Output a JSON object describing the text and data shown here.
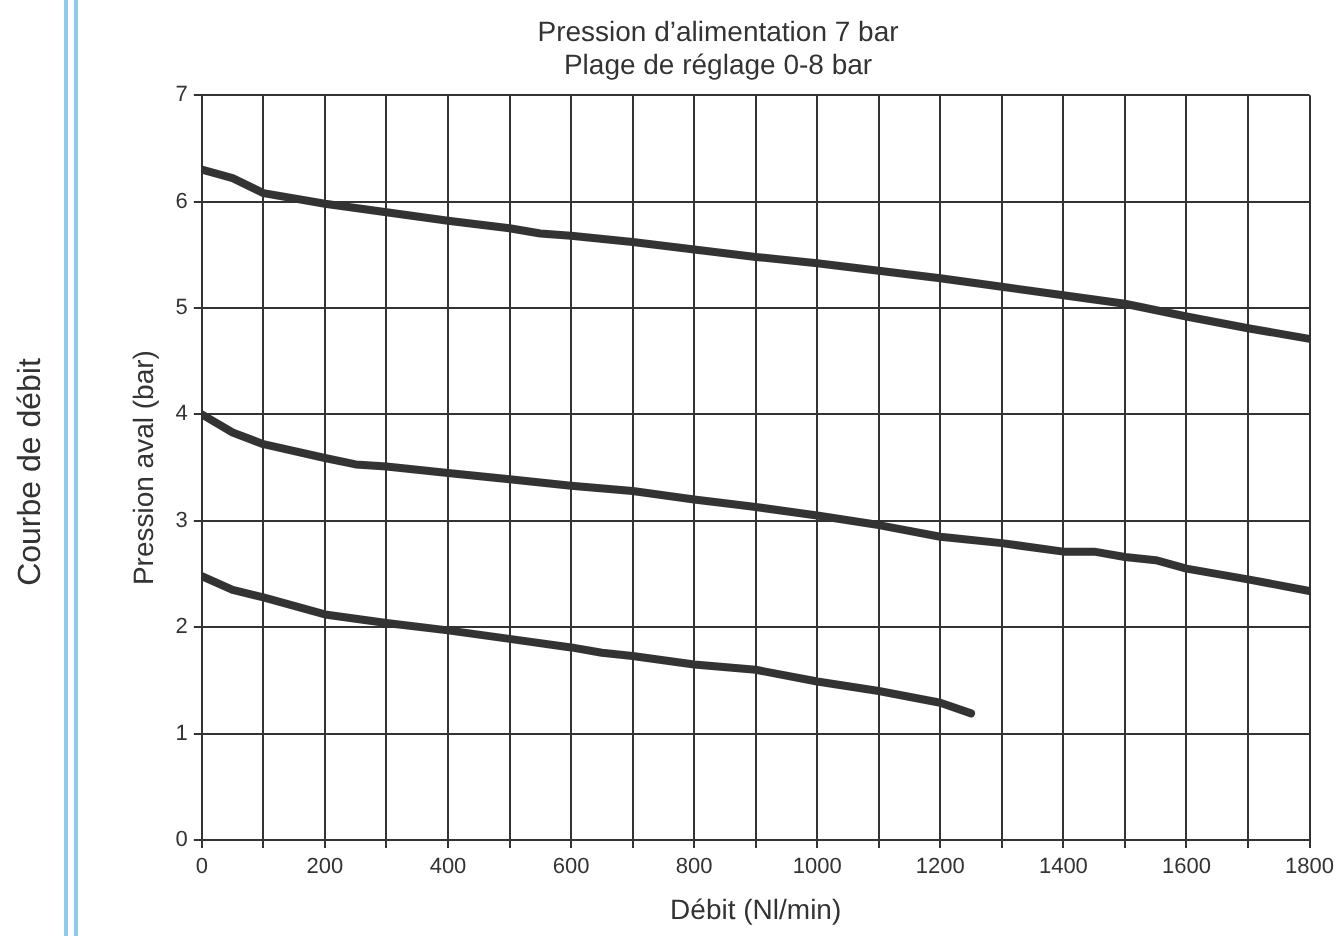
{
  "chart_data": {
    "type": "line",
    "title": "Pression d’alimentation 7 bar",
    "subtitle": "Plage de réglage 0-8 bar",
    "xlabel": "Débit (Nl/min)",
    "ylabel": "Pression aval (bar)",
    "annotations": [
      "Courbe de débit"
    ],
    "x": [
      0,
      50,
      100,
      200,
      300,
      400,
      500,
      550,
      600,
      700,
      800,
      900,
      1000,
      1100,
      1200,
      1300,
      1400,
      1500,
      1600,
      1700,
      1800
    ],
    "series": [
      {
        "color": "#333333",
        "values": [
          6.3,
          6.22,
          6.08,
          5.98,
          5.9,
          5.82,
          5.75,
          5.7,
          5.68,
          5.62,
          5.55,
          5.48,
          5.42,
          5.35,
          5.28,
          5.2,
          5.12,
          5.04,
          4.92,
          4.81,
          4.71
        ]
      },
      {
        "color": "#333333",
        "x": [
          0,
          50,
          100,
          200,
          250,
          300,
          400,
          500,
          600,
          700,
          800,
          900,
          1000,
          1100,
          1200,
          1300,
          1400,
          1450,
          1500,
          1550,
          1600,
          1700,
          1800
        ],
        "values": [
          4.0,
          3.83,
          3.72,
          3.59,
          3.53,
          3.51,
          3.45,
          3.39,
          3.33,
          3.28,
          3.2,
          3.13,
          3.05,
          2.96,
          2.85,
          2.79,
          2.71,
          2.71,
          2.66,
          2.63,
          2.55,
          2.45,
          2.34
        ]
      },
      {
        "color": "#333333",
        "x": [
          0,
          50,
          100,
          200,
          300,
          400,
          500,
          600,
          650,
          700,
          800,
          900,
          1000,
          1100,
          1200,
          1250
        ],
        "values": [
          2.48,
          2.35,
          2.28,
          2.12,
          2.04,
          1.97,
          1.89,
          1.81,
          1.76,
          1.73,
          1.65,
          1.6,
          1.49,
          1.4,
          1.29,
          1.19
        ]
      }
    ],
    "xlim": [
      0,
      1800
    ],
    "xticks": [
      0,
      {
        "value": 100,
        "label": null
      },
      200,
      {
        "value": 300,
        "label": null
      },
      400,
      {
        "value": 500,
        "label": null
      },
      600,
      {
        "value": 700,
        "label": null
      },
      800,
      {
        "value": 900,
        "label": null
      },
      1000,
      {
        "value": 1100,
        "label": null
      },
      1200,
      {
        "value": 1300,
        "label": null
      },
      1400,
      {
        "value": 1500,
        "label": null
      },
      1600,
      {
        "value": 1700,
        "label": null
      },
      1800
    ],
    "ylim": [
      0,
      7
    ],
    "yticks": [
      0,
      1,
      2,
      3,
      4,
      5,
      6,
      7
    ],
    "grid": true,
    "legend": false,
    "marker": "none",
    "line_style": "solid"
  }
}
